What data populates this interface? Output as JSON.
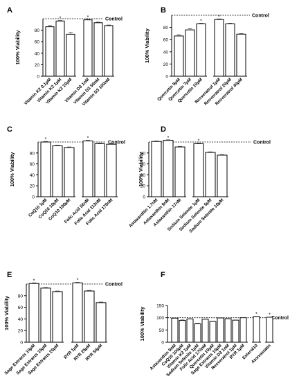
{
  "chart_data": [
    {
      "panel": "A",
      "type": "bar",
      "ylabel": "100% Viability",
      "ylim": [
        0,
        100
      ],
      "yticks": [
        0,
        20,
        40,
        60,
        80
      ],
      "categories": [
        "Vitamin K2 0.1μM",
        "Vitamin K2 1μM",
        "Vitamin K2 10μM",
        "Vitamin D3 1nM",
        "Vitamin D3 50nM",
        "Vitamin D3 100nM"
      ],
      "values": [
        86,
        96,
        73,
        98,
        93,
        88
      ],
      "errors": [
        2,
        1,
        3,
        1,
        1,
        1
      ],
      "stars": [
        false,
        true,
        false,
        true,
        false,
        false
      ],
      "reference_line": {
        "label": "Control",
        "value": 100
      },
      "groups": [
        3,
        3
      ]
    },
    {
      "panel": "B",
      "type": "bar",
      "ylabel": "100% Viability",
      "ylim": [
        0,
        100
      ],
      "yticks": [
        0,
        20,
        40,
        60,
        80
      ],
      "categories": [
        "Quercetin 5μM",
        "Quercetin 7μM",
        "Quercetin 10μM",
        "Resveratrol 1μM",
        "Resveratrol 20μM",
        "Resveratrol 40μM"
      ],
      "values": [
        66,
        76,
        86,
        93,
        86,
        69
      ],
      "errors": [
        2,
        2,
        1,
        1,
        1,
        1
      ],
      "stars": [
        false,
        false,
        true,
        true,
        false,
        false
      ],
      "reference_line": {
        "label": "Control",
        "value": 100
      },
      "groups": [
        3,
        3
      ]
    },
    {
      "panel": "C",
      "type": "bar",
      "ylabel": "100% Viability",
      "ylim": [
        0,
        100
      ],
      "yticks": [
        0,
        20,
        40,
        60,
        80
      ],
      "categories": [
        "CoQ10 1μM",
        "CoQ10 10μM",
        "CoQ10 100μM",
        "Folic Acid 56nM",
        "Folic Acid 113nM",
        "Folic Acid 170nM"
      ],
      "values": [
        100,
        93,
        90,
        102,
        97,
        96
      ],
      "errors": [
        1,
        1,
        1,
        1,
        1,
        1
      ],
      "stars": [
        true,
        false,
        false,
        true,
        false,
        false
      ],
      "reference_line": {
        "label": "Control",
        "value": 100
      },
      "groups": [
        3,
        3
      ]
    },
    {
      "panel": "D",
      "type": "bar",
      "ylabel": "100% Viability",
      "ylim": [
        0,
        100
      ],
      "yticks": [
        0,
        20,
        40,
        60,
        80
      ],
      "categories": [
        "Astaxanthin 1.7nM",
        "Astaxanthin 9nM",
        "Astaxanthin 17nM",
        "Sodium Selenite 1μM",
        "Sodium Selenite 5μM",
        "Sodium Selenite 10μM"
      ],
      "values": [
        101,
        103,
        91,
        97,
        81,
        76
      ],
      "errors": [
        1,
        1,
        1,
        1,
        1,
        1
      ],
      "stars": [
        false,
        true,
        false,
        true,
        false,
        false
      ],
      "reference_line": {
        "label": "Control",
        "value": 100
      },
      "groups": [
        3,
        3
      ]
    },
    {
      "panel": "E",
      "type": "bar",
      "ylabel": "100% Viability",
      "ylim": [
        0,
        100
      ],
      "yticks": [
        0,
        20,
        40,
        60,
        80
      ],
      "categories": [
        "Sage Extracts 10μM",
        "Sage Extracts 15μM",
        "Sage Extracts 20μM",
        "RYR 1μM",
        "RYR 25μM",
        "RYR 50μM"
      ],
      "values": [
        101,
        93,
        87,
        102,
        88,
        68
      ],
      "errors": [
        1,
        1,
        1,
        1,
        1,
        1
      ],
      "stars": [
        true,
        false,
        false,
        true,
        false,
        false
      ],
      "reference_line": {
        "label": "Control",
        "value": 100
      },
      "groups": [
        3,
        3
      ]
    },
    {
      "panel": "F",
      "type": "bar",
      "ylabel": "100% Viability",
      "ylim": [
        0,
        150
      ],
      "yticks": [
        0,
        50,
        100,
        150
      ],
      "categories": [
        "Astaxanthin 9nM",
        "CoQ10 100μM",
        "Vitamin K2 1μM",
        "Sodium Selenite 1μM",
        "Folic Acid 170nM",
        "Quercetin 10μM",
        "Sage Extracts 10μM",
        "Vitamin D3 1nM",
        "Resveratrol 1μM",
        "RYR 1μM",
        "Esterol10",
        "Atorvastatin"
      ],
      "values": [
        98,
        89,
        95,
        75,
        94,
        85,
        99,
        96,
        90,
        100,
        105,
        102
      ],
      "errors": [
        1,
        2,
        1,
        2,
        1,
        1,
        1,
        1,
        1,
        1,
        1,
        1
      ],
      "stars": [
        false,
        false,
        false,
        false,
        false,
        false,
        false,
        false,
        false,
        false,
        true,
        true
      ],
      "reference_line": {
        "label": "Control",
        "value": 100
      },
      "groups": [
        10,
        1,
        1
      ]
    }
  ]
}
